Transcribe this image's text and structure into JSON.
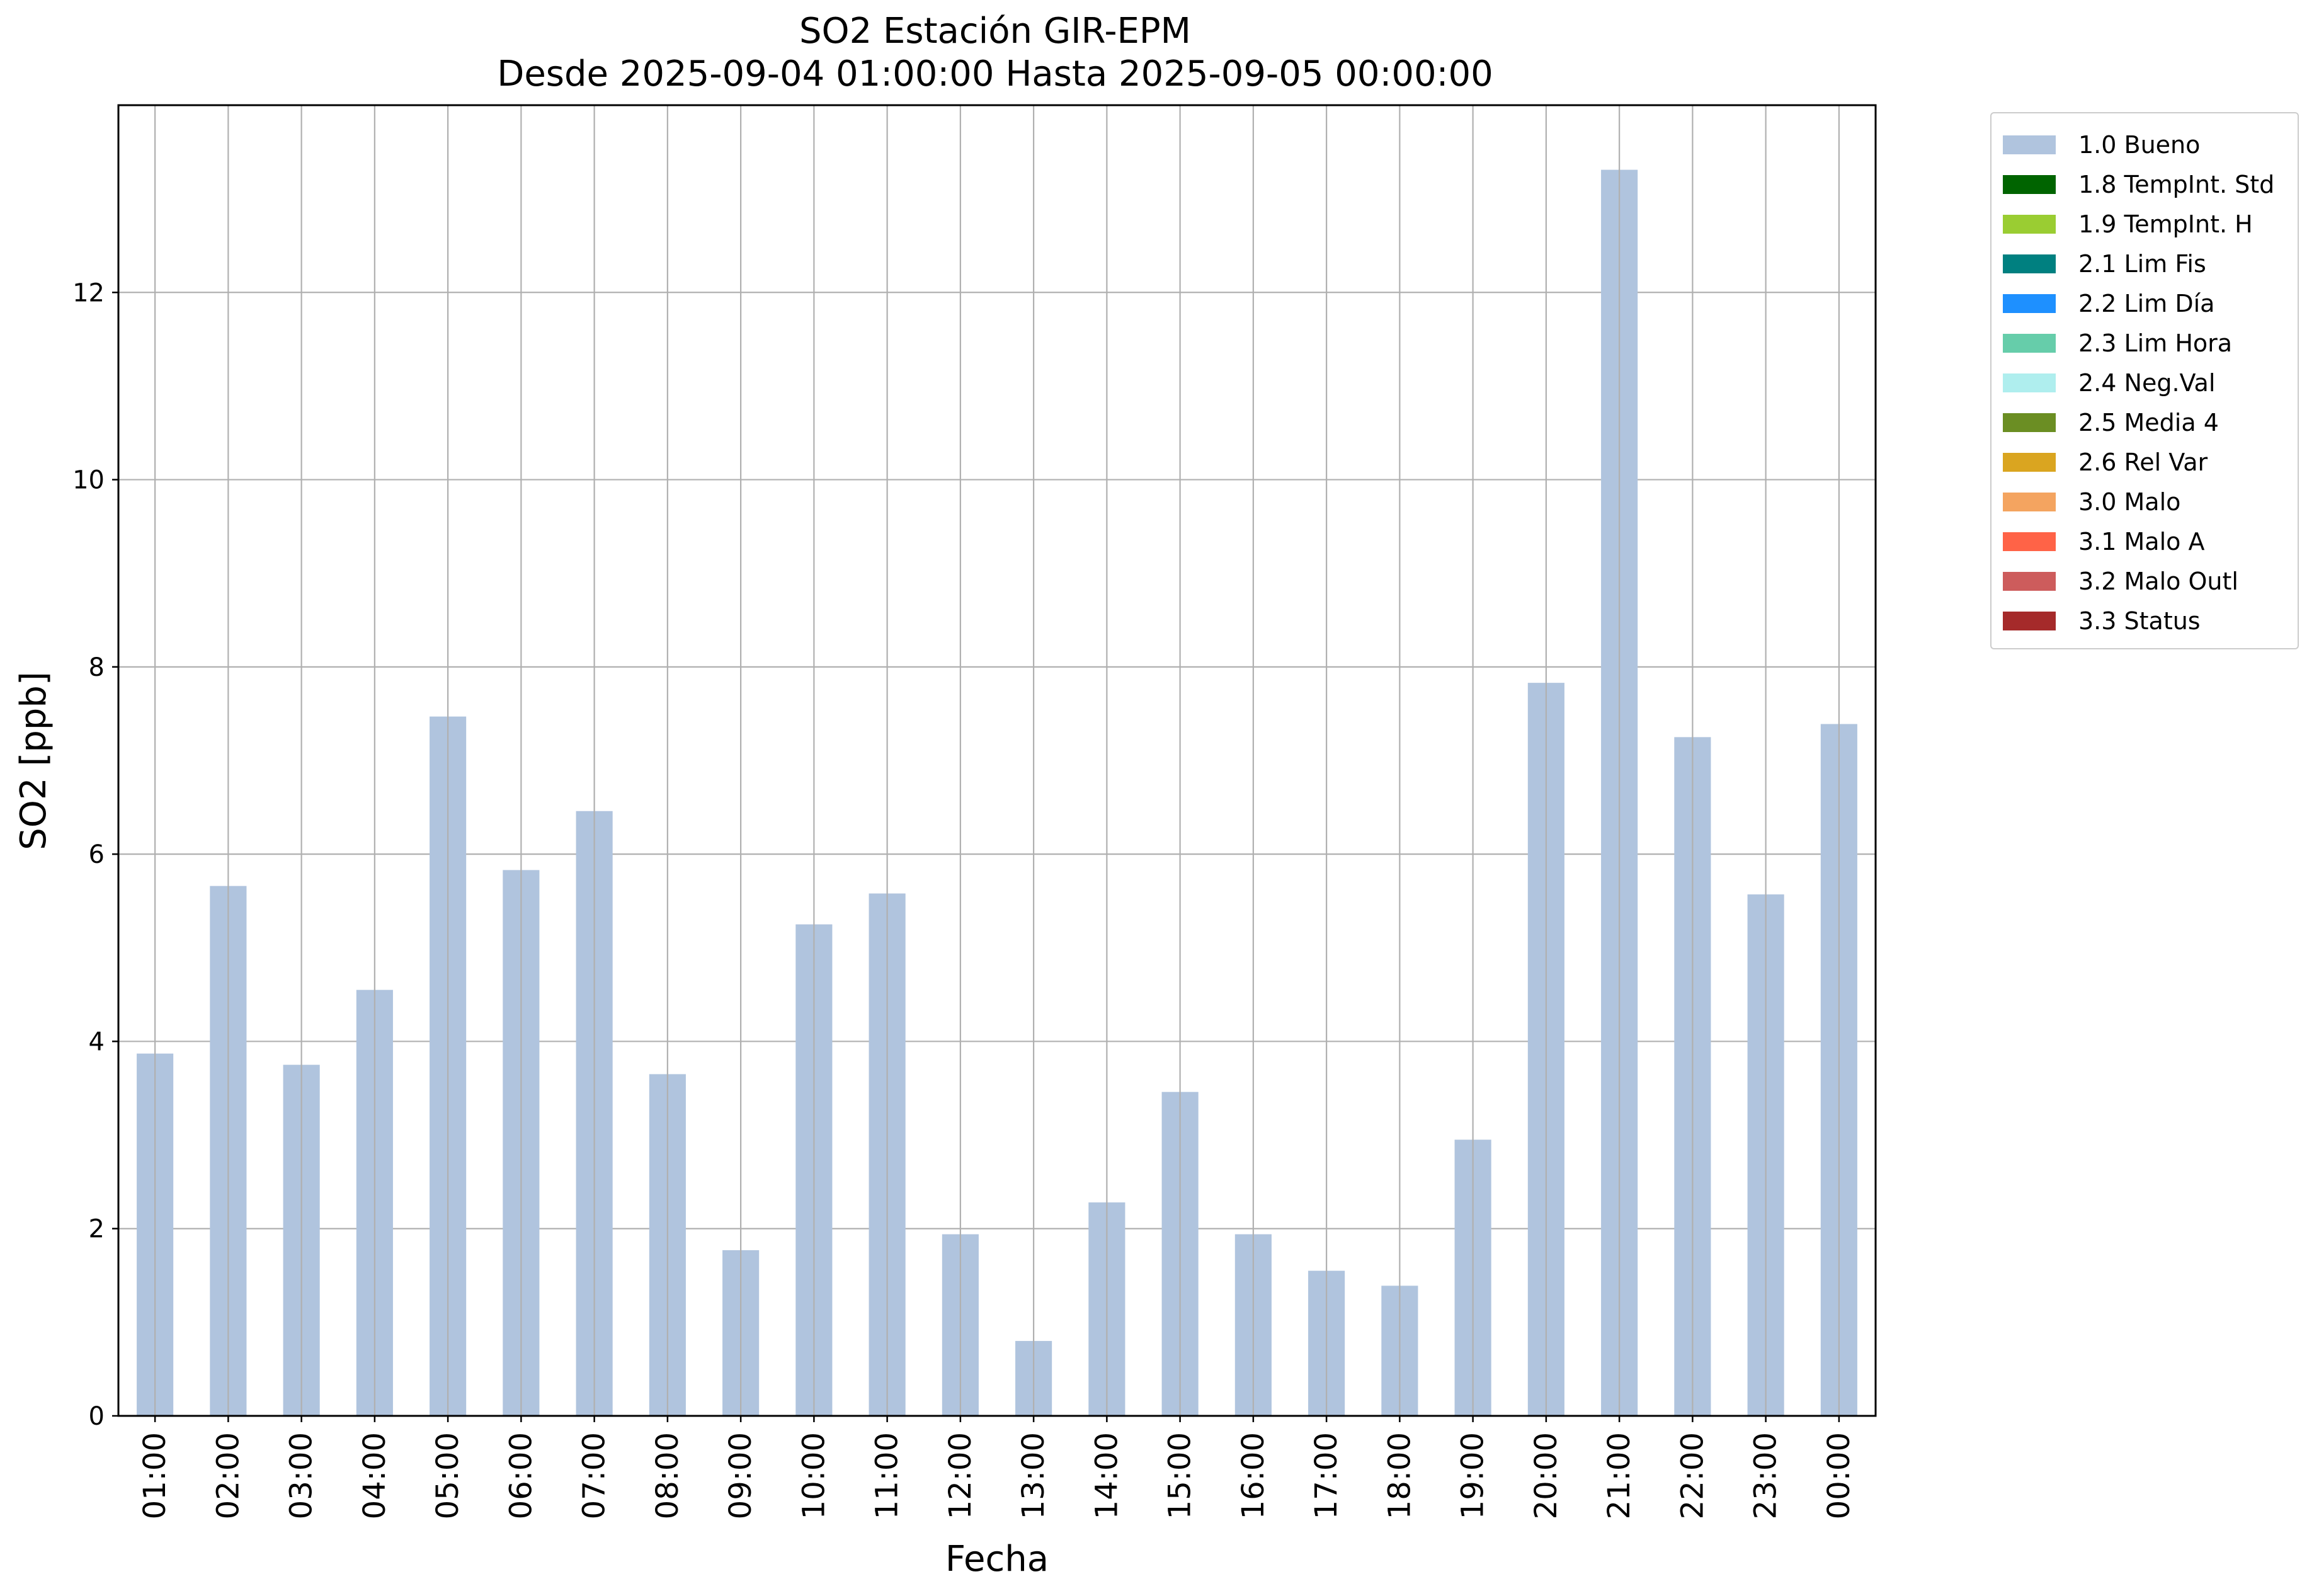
{
  "chart_data": {
    "type": "bar",
    "title": "SO2 Estación GIR-EPM",
    "subtitle": "Desde 2025-09-04 01:00:00 Hasta 2025-09-05 00:00:00",
    "xlabel": "Fecha",
    "ylabel": "SO2 [ppb]",
    "ylim": [
      0,
      14
    ],
    "yticks": [
      0,
      2,
      4,
      6,
      8,
      10,
      12
    ],
    "grid": true,
    "legend_position": "outside top-right",
    "categories": [
      "01:00",
      "02:00",
      "03:00",
      "04:00",
      "05:00",
      "06:00",
      "07:00",
      "08:00",
      "09:00",
      "10:00",
      "11:00",
      "12:00",
      "13:00",
      "14:00",
      "15:00",
      "16:00",
      "17:00",
      "18:00",
      "19:00",
      "20:00",
      "21:00",
      "22:00",
      "23:00",
      "00:00"
    ],
    "series": [
      {
        "name": "1.0 Bueno",
        "color": "#b0c4de",
        "values": [
          3.87,
          5.66,
          3.75,
          4.55,
          7.47,
          5.83,
          6.46,
          3.65,
          1.77,
          5.25,
          5.58,
          1.94,
          0.8,
          2.28,
          3.46,
          1.94,
          1.55,
          1.39,
          2.95,
          7.83,
          13.31,
          7.25,
          5.57,
          7.39
        ]
      }
    ],
    "legend": [
      {
        "label": "1.0 Bueno",
        "color": "#b0c4de"
      },
      {
        "label": "1.8 TempInt. Std",
        "color": "#006400"
      },
      {
        "label": "1.9 TempInt. H",
        "color": "#9acd32"
      },
      {
        "label": "2.1 Lim Fis",
        "color": "#008080"
      },
      {
        "label": "2.2 Lim Día",
        "color": "#1e90ff"
      },
      {
        "label": "2.3 Lim Hora",
        "color": "#66cdaa"
      },
      {
        "label": "2.4 Neg.Val",
        "color": "#afeeee"
      },
      {
        "label": "2.5 Media 4",
        "color": "#6b8e23"
      },
      {
        "label": "2.6 Rel Var",
        "color": "#daa520"
      },
      {
        "label": "3.0 Malo",
        "color": "#f4a460"
      },
      {
        "label": "3.1 Malo A",
        "color": "#ff6347"
      },
      {
        "label": "3.2 Malo Outl",
        "color": "#cd5c5c"
      },
      {
        "label": "3.3 Status",
        "color": "#a52a2a"
      }
    ]
  }
}
